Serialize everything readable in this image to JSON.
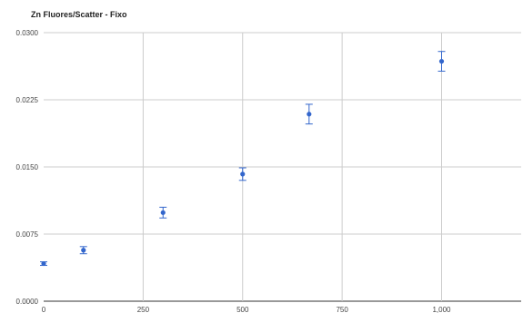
{
  "chart_data": {
    "type": "scatter",
    "title": "Zn Fluores/Scatter - Fixo",
    "xlabel": "",
    "ylabel": "",
    "xlim": [
      0,
      1200
    ],
    "ylim": [
      0,
      0.03
    ],
    "x_ticks": [
      0,
      250,
      500,
      750,
      1000
    ],
    "x_tick_labels": [
      "0",
      "250",
      "500",
      "750",
      "1,000"
    ],
    "y_ticks": [
      0,
      0.0075,
      0.015,
      0.0225,
      0.03
    ],
    "y_tick_labels": [
      "0.0000",
      "0.0075",
      "0.0150",
      "0.0225",
      "0.0300"
    ],
    "grid": true,
    "series": [
      {
        "color": "#3366cc",
        "points": [
          {
            "x": 0,
            "y": 0.0042,
            "err": 0.0002
          },
          {
            "x": 100,
            "y": 0.0057,
            "err": 0.0004
          },
          {
            "x": 300,
            "y": 0.0099,
            "err": 0.0006
          },
          {
            "x": 500,
            "y": 0.0142,
            "err": 0.0007
          },
          {
            "x": 667,
            "y": 0.0209,
            "err": 0.0011
          },
          {
            "x": 1000,
            "y": 0.0268,
            "err": 0.0011
          }
        ]
      }
    ]
  }
}
